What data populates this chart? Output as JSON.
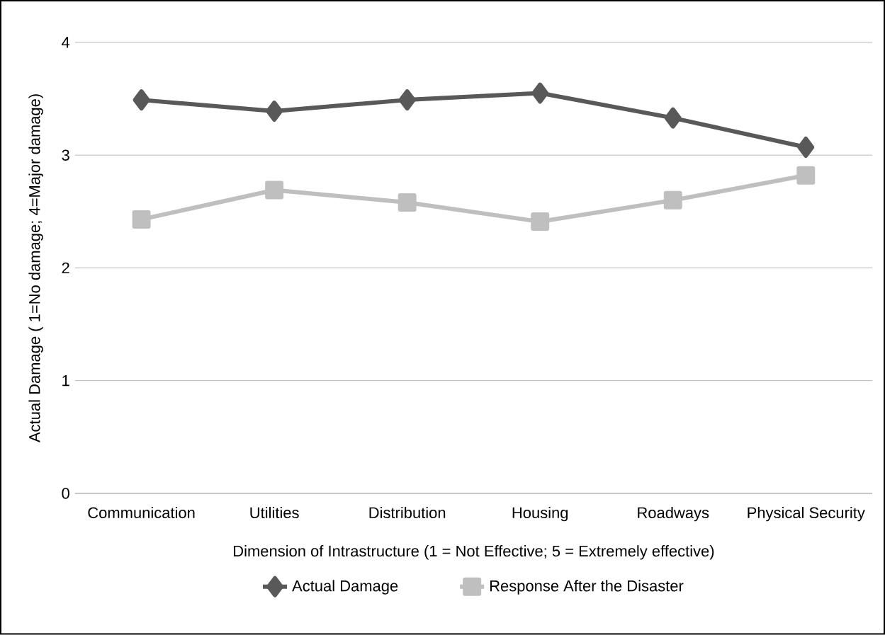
{
  "chart_data": {
    "type": "line",
    "xlabel": "Dimension of Intrastructure (1 = Not Effective; 5 = Extremely effective)",
    "ylabel": "Actual Damage ( 1=No damage; 4=Major damage)",
    "categories": [
      "Communication",
      "Utilities",
      "Distribution",
      "Housing",
      "Roadways",
      "Physical Security"
    ],
    "series": [
      {
        "name": "Actual Damage",
        "color": "#595959",
        "marker": "diamond",
        "values": [
          3.49,
          3.39,
          3.49,
          3.55,
          3.33,
          3.07
        ]
      },
      {
        "name": "Response After the Disaster",
        "color": "#bfbfbf",
        "marker": "square",
        "values": [
          2.43,
          2.69,
          2.58,
          2.41,
          2.6,
          2.82
        ]
      }
    ],
    "ylim": [
      0,
      4
    ],
    "yticks": [
      0,
      1,
      2,
      3,
      4
    ],
    "grid": "y",
    "legend": "bottom",
    "line_style": "solid"
  }
}
